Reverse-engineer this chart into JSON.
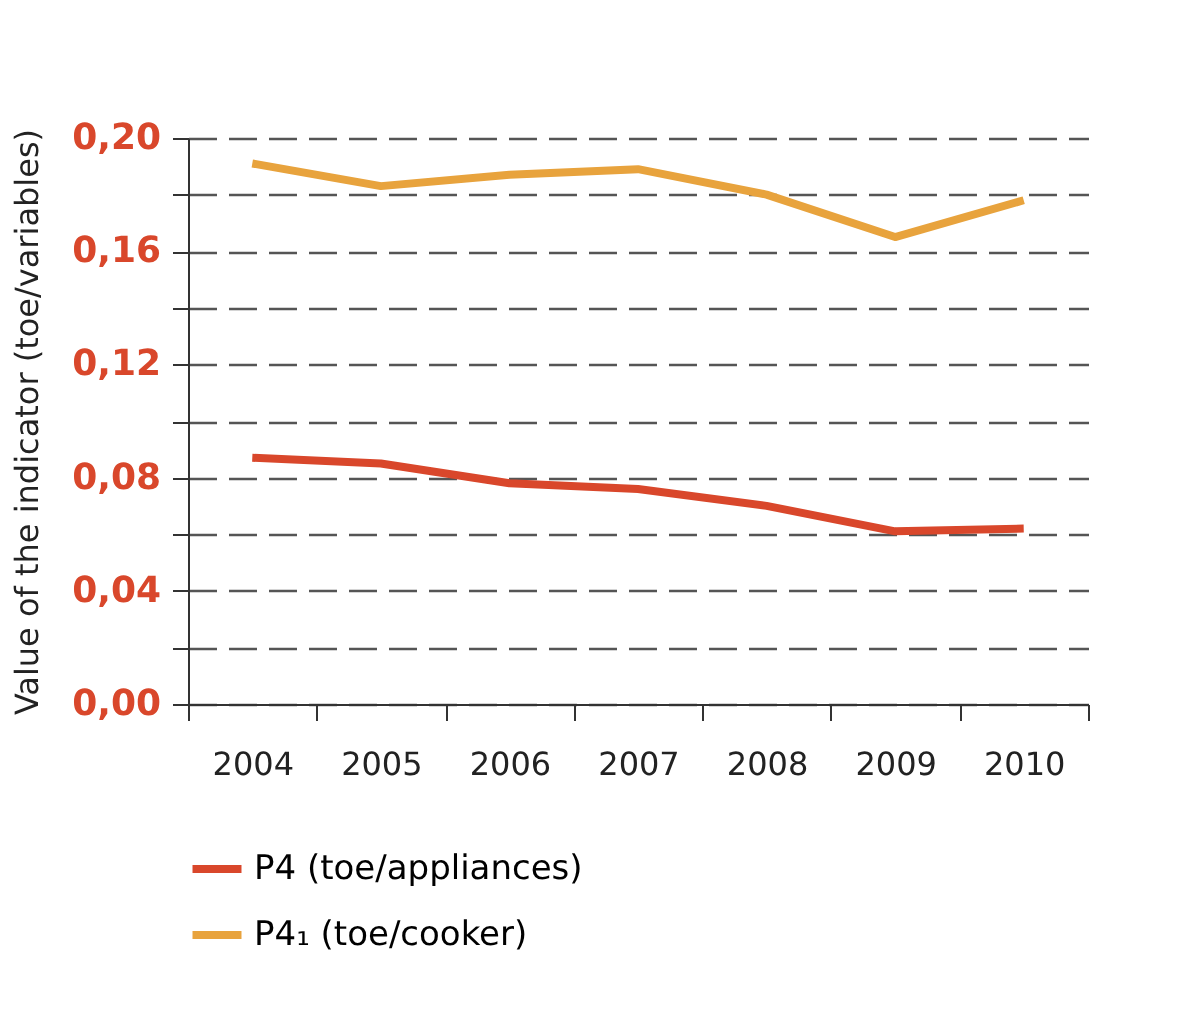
{
  "chart_data": {
    "type": "line",
    "ylabel": "Value of the indicator (toe/variables)",
    "categories": [
      "2004",
      "2005",
      "2006",
      "2007",
      "2008",
      "2009",
      "2010"
    ],
    "series": [
      {
        "name": "P4 (toe/appliances)",
        "color": "#d9472b",
        "values": [
          0.087,
          0.085,
          0.078,
          0.076,
          0.07,
          0.061,
          0.062
        ]
      },
      {
        "name": "P4₁ (toe/cooker)",
        "color": "#e8a33d",
        "values": [
          0.191,
          0.183,
          0.187,
          0.189,
          0.18,
          0.165,
          0.178
        ]
      }
    ],
    "ylim": [
      0,
      0.2
    ],
    "yticks": [
      {
        "value": 0,
        "label": "0,00"
      },
      {
        "value": 0.02,
        "label": null
      },
      {
        "value": 0.04,
        "label": "0,04"
      },
      {
        "value": 0.06,
        "label": null
      },
      {
        "value": 0.08,
        "label": "0,08"
      },
      {
        "value": 0.1,
        "label": null
      },
      {
        "value": 0.12,
        "label": "0,12"
      },
      {
        "value": 0.14,
        "label": null
      },
      {
        "value": 0.16,
        "label": "0,16"
      },
      {
        "value": 0.18,
        "label": null
      },
      {
        "value": 0.2,
        "label": "0,20"
      }
    ],
    "grid": "y",
    "legend": "bottom",
    "line_style": "solid"
  }
}
